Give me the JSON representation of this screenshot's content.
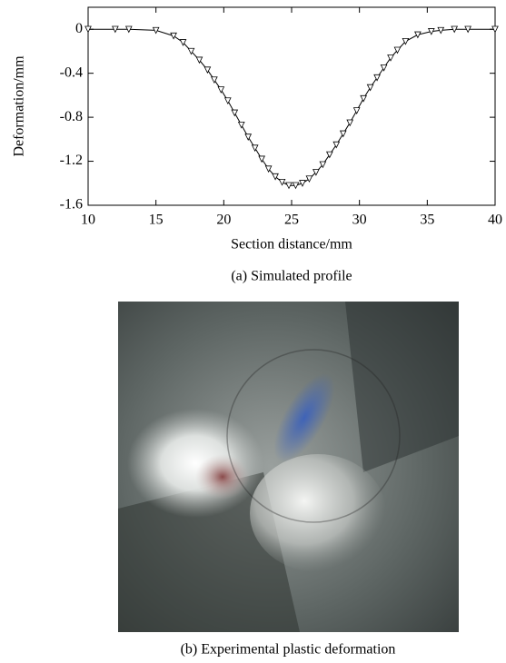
{
  "chart_data": {
    "type": "line",
    "x": [
      10,
      12,
      13,
      15,
      16.3,
      17,
      17.6,
      18.2,
      18.8,
      19.3,
      19.8,
      20.3,
      20.8,
      21.3,
      21.8,
      22.3,
      22.8,
      23.3,
      23.8,
      24.3,
      24.8,
      25.3,
      25.8,
      26.3,
      26.8,
      27.3,
      27.8,
      28.3,
      28.8,
      29.3,
      29.8,
      30.3,
      30.8,
      31.3,
      31.8,
      32.3,
      32.8,
      33.4,
      34.3,
      35.3,
      36,
      37,
      38,
      40
    ],
    "values": [
      0,
      0,
      0,
      -0.01,
      -0.06,
      -0.12,
      -0.2,
      -0.28,
      -0.37,
      -0.46,
      -0.55,
      -0.65,
      -0.76,
      -0.87,
      -0.98,
      -1.08,
      -1.18,
      -1.27,
      -1.34,
      -1.39,
      -1.42,
      -1.42,
      -1.4,
      -1.36,
      -1.3,
      -1.23,
      -1.14,
      -1.05,
      -0.95,
      -0.85,
      -0.74,
      -0.63,
      -0.53,
      -0.44,
      -0.35,
      -0.26,
      -0.19,
      -0.11,
      -0.05,
      -0.02,
      -0.01,
      0,
      0,
      0
    ],
    "color": "#000000",
    "xlabel": "Section distance/mm",
    "ylabel": "Deformation/mm",
    "xlim": [
      10,
      40
    ],
    "xticks": [
      10,
      15,
      20,
      25,
      30,
      35,
      40
    ],
    "ylim": [
      -1.6,
      0.2
    ],
    "yticks": [
      0,
      -0.4,
      -0.8,
      -1.2,
      -1.6
    ],
    "caption": "(a) Simulated profile"
  },
  "photo": {
    "caption": "(b) Experimental plastic deformation"
  }
}
